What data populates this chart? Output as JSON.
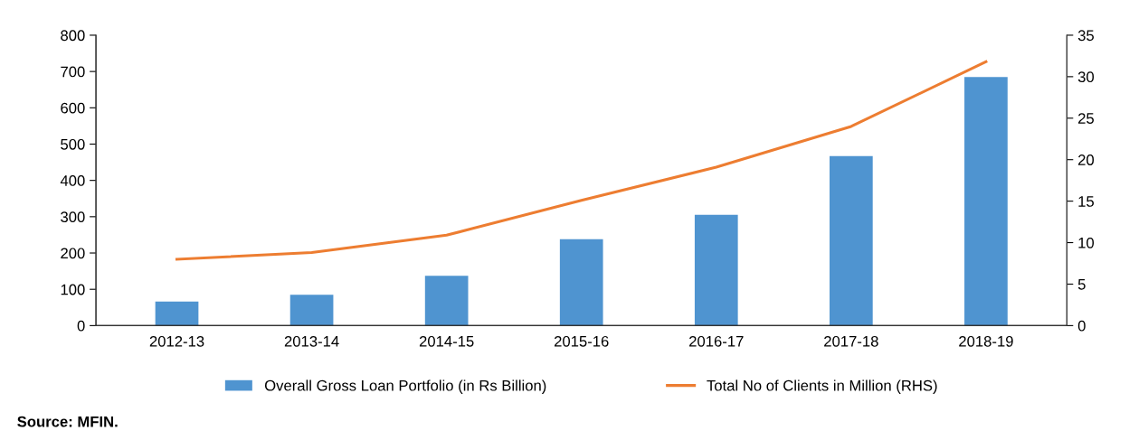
{
  "chart_data": {
    "type": "bar",
    "categories": [
      "2012-13",
      "2013-14",
      "2014-15",
      "2015-16",
      "2016-17",
      "2017-18",
      "2018-19"
    ],
    "series": [
      {
        "name": "Overall Gross Loan Portfolio (in Rs Billion)",
        "color": "#4f94d0",
        "values": [
          66,
          85,
          137,
          238,
          305,
          467,
          685
        ]
      },
      {
        "name": "Total No of Clients in Million (RHS)",
        "color": "#ed7d31",
        "type": "line",
        "axis": "y2",
        "values": [
          8.0,
          8.8,
          10.9,
          15.1,
          19.1,
          24.0,
          31.8
        ]
      }
    ],
    "ylim": [
      0,
      800
    ],
    "yticks": [
      0,
      100,
      200,
      300,
      400,
      500,
      600,
      700,
      800
    ],
    "y2lim": [
      0,
      35
    ],
    "y2ticks": [
      0,
      5,
      10,
      15,
      20,
      25,
      30,
      35
    ],
    "grid": false,
    "legend": "bottom",
    "annotations": [
      "Source: MFIN."
    ]
  }
}
